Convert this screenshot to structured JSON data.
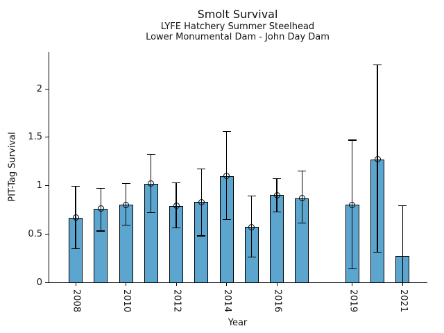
{
  "header": {
    "title": "Smolt Survival",
    "subtitle1": "LYFE Hatchery Summer Steelhead",
    "subtitle2": "Lower Monumental Dam - John Day Dam"
  },
  "chart_data": {
    "type": "bar",
    "title": "Smolt Survival",
    "subtitle": [
      "LYFE Hatchery Summer Steelhead",
      "Lower Monumental Dam - John Day Dam"
    ],
    "xlabel": "Year",
    "ylabel": "PIT-Tag Survival",
    "ylim": [
      0,
      2.38
    ],
    "xlim": [
      2007,
      2022
    ],
    "grid": false,
    "legend": "none",
    "bar_color": "#5BA5CF",
    "bar_edge_color": "#000000",
    "error_bar_color": "#000000",
    "marker_style": "open-circle",
    "missing_years": [
      2018
    ],
    "y_ticks": [
      {
        "value": 0,
        "label": "0"
      },
      {
        "value": 0.5,
        "label": "0.5"
      },
      {
        "value": 1,
        "label": "1"
      },
      {
        "value": 1.5,
        "label": "1.5"
      },
      {
        "value": 2,
        "label": "2"
      }
    ],
    "x_ticks": [
      {
        "year": 2008,
        "label": "2008"
      },
      {
        "year": 2010,
        "label": "2010"
      },
      {
        "year": 2012,
        "label": "2012"
      },
      {
        "year": 2014,
        "label": "2014"
      },
      {
        "year": 2016,
        "label": "2016"
      },
      {
        "year": 2019,
        "label": "2019"
      },
      {
        "year": 2021,
        "label": "2021"
      }
    ],
    "bars": [
      {
        "year": 2008,
        "value": 0.67,
        "err_lo": 0.35,
        "err_hi": 0.99,
        "marker": true
      },
      {
        "year": 2009,
        "value": 0.76,
        "err_lo": 0.53,
        "err_hi": 0.97,
        "marker": true
      },
      {
        "year": 2010,
        "value": 0.8,
        "err_lo": 0.59,
        "err_hi": 1.02,
        "marker": true
      },
      {
        "year": 2011,
        "value": 1.02,
        "err_lo": 0.72,
        "err_hi": 1.32,
        "marker": true
      },
      {
        "year": 2012,
        "value": 0.79,
        "err_lo": 0.56,
        "err_hi": 1.03,
        "marker": true
      },
      {
        "year": 2013,
        "value": 0.83,
        "err_lo": 0.48,
        "err_hi": 1.17,
        "marker": true
      },
      {
        "year": 2014,
        "value": 1.1,
        "err_lo": 0.65,
        "err_hi": 1.56,
        "marker": true
      },
      {
        "year": 2015,
        "value": 0.57,
        "err_lo": 0.26,
        "err_hi": 0.89,
        "marker": true
      },
      {
        "year": 2016,
        "value": 0.9,
        "err_lo": 0.73,
        "err_hi": 1.07,
        "marker": true
      },
      {
        "year": 2017,
        "value": 0.87,
        "err_lo": 0.61,
        "err_hi": 1.15,
        "marker": true
      },
      {
        "year": 2019,
        "value": 0.8,
        "err_lo": 0.14,
        "err_hi": 1.47,
        "marker": true
      },
      {
        "year": 2020,
        "value": 1.27,
        "err_lo": 0.31,
        "err_hi": 2.25,
        "marker": true
      },
      {
        "year": 2021,
        "value": 0.27,
        "err_lo": 0.0,
        "err_hi": 0.79,
        "marker": false
      }
    ]
  }
}
